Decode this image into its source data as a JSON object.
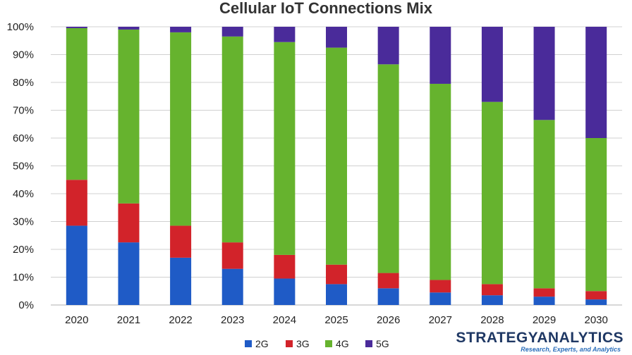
{
  "chart_data": {
    "type": "bar",
    "stacked": true,
    "title": "Cellular IoT Connections Mix",
    "xlabel": "",
    "ylabel": "",
    "ylim": [
      0,
      100
    ],
    "y_ticks": [
      "0%",
      "10%",
      "20%",
      "30%",
      "40%",
      "50%",
      "60%",
      "70%",
      "80%",
      "90%",
      "100%"
    ],
    "grid": true,
    "legend_position": "bottom-center",
    "categories": [
      "2020",
      "2021",
      "2022",
      "2023",
      "2024",
      "2025",
      "2026",
      "2027",
      "2028",
      "2029",
      "2030"
    ],
    "series": [
      {
        "name": "2G",
        "color": "#1f5bc6",
        "values": [
          28.5,
          22.5,
          17,
          13,
          9.5,
          7.5,
          6,
          4.5,
          3.5,
          3,
          2
        ]
      },
      {
        "name": "3G",
        "color": "#d2232a",
        "values": [
          16.5,
          14,
          11.5,
          9.5,
          8.5,
          7,
          5.5,
          4.5,
          4,
          3,
          3
        ]
      },
      {
        "name": "4G",
        "color": "#66b32e",
        "values": [
          54.5,
          62.5,
          69.5,
          74,
          76.5,
          78,
          75,
          70.5,
          65.5,
          60.5,
          55
        ]
      },
      {
        "name": "5G",
        "color": "#4a2b9a",
        "values": [
          0.5,
          1,
          2,
          3.5,
          5.5,
          7.5,
          13.5,
          20.5,
          27,
          33.5,
          40
        ]
      }
    ]
  },
  "brand": {
    "name": "STRATEGYANALYTICS",
    "tagline": "Research, Experts, and Analytics"
  }
}
